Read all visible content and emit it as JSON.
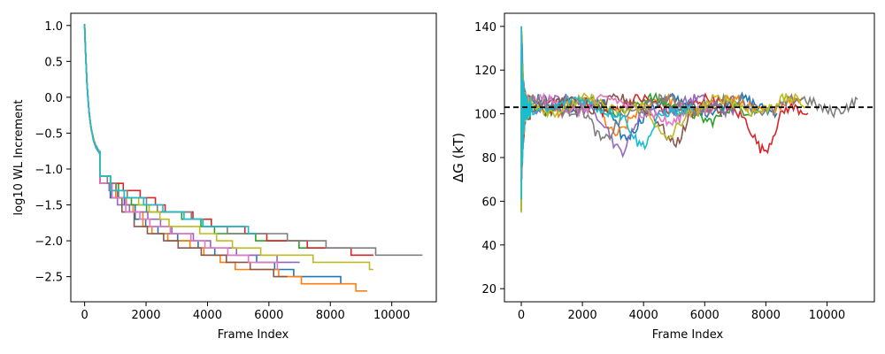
{
  "chart_data": [
    {
      "type": "line",
      "title": "",
      "xlabel": "Frame Index",
      "ylabel": "log10 WL Increment",
      "xlim": [
        -450,
        11450
      ],
      "ylim": [
        -2.85,
        1.17
      ],
      "xticks": [
        0,
        2000,
        4000,
        6000,
        8000,
        10000
      ],
      "yticks": [
        1.0,
        0.5,
        0.0,
        -0.5,
        -1.0,
        -1.5,
        -2.0,
        -2.5
      ],
      "ytick_labels": [
        "1.0",
        "0.5",
        "0.0",
        "−0.5",
        "−1.0",
        "−1.5",
        "−2.0",
        "−2.5"
      ],
      "series": [
        {
          "color": "#1f77b4",
          "end_x": 8400,
          "final_y": -2.6
        },
        {
          "color": "#ff7f0e",
          "end_x": 9200,
          "final_y": -2.7
        },
        {
          "color": "#2ca02c",
          "end_x": 7800,
          "final_y": -2.1
        },
        {
          "color": "#d62728",
          "end_x": 9400,
          "final_y": -2.2
        },
        {
          "color": "#9467bd",
          "end_x": 7000,
          "final_y": -2.3
        },
        {
          "color": "#8c564b",
          "end_x": 6600,
          "final_y": -2.5
        },
        {
          "color": "#e377c2",
          "end_x": 6300,
          "final_y": -2.4
        },
        {
          "color": "#7f7f7f",
          "end_x": 11000,
          "final_y": -2.2
        },
        {
          "color": "#bcbd22",
          "end_x": 9400,
          "final_y": -2.4
        },
        {
          "color": "#17becf",
          "end_x": 5600,
          "final_y": -1.9
        }
      ]
    },
    {
      "type": "line",
      "title": "",
      "xlabel": "Frame Index",
      "ylabel": "ΔG (kT)",
      "xlim": [
        -550,
        11550
      ],
      "ylim": [
        14,
        146
      ],
      "xticks": [
        0,
        2000,
        4000,
        6000,
        8000,
        10000
      ],
      "yticks": [
        20,
        40,
        60,
        80,
        100,
        120,
        140
      ],
      "reference_line": {
        "y": 103,
        "style": "dashed",
        "color": "#000000"
      },
      "series": [
        {
          "color": "#1f77b4",
          "end_x": 8400
        },
        {
          "color": "#ff7f0e",
          "end_x": 9200
        },
        {
          "color": "#2ca02c",
          "end_x": 7800
        },
        {
          "color": "#d62728",
          "end_x": 9400
        },
        {
          "color": "#9467bd",
          "end_x": 7000
        },
        {
          "color": "#8c564b",
          "end_x": 6600
        },
        {
          "color": "#e377c2",
          "end_x": 6300
        },
        {
          "color": "#7f7f7f",
          "end_x": 11000
        },
        {
          "color": "#bcbd22",
          "end_x": 9400
        },
        {
          "color": "#17becf",
          "end_x": 5600
        }
      ]
    }
  ]
}
